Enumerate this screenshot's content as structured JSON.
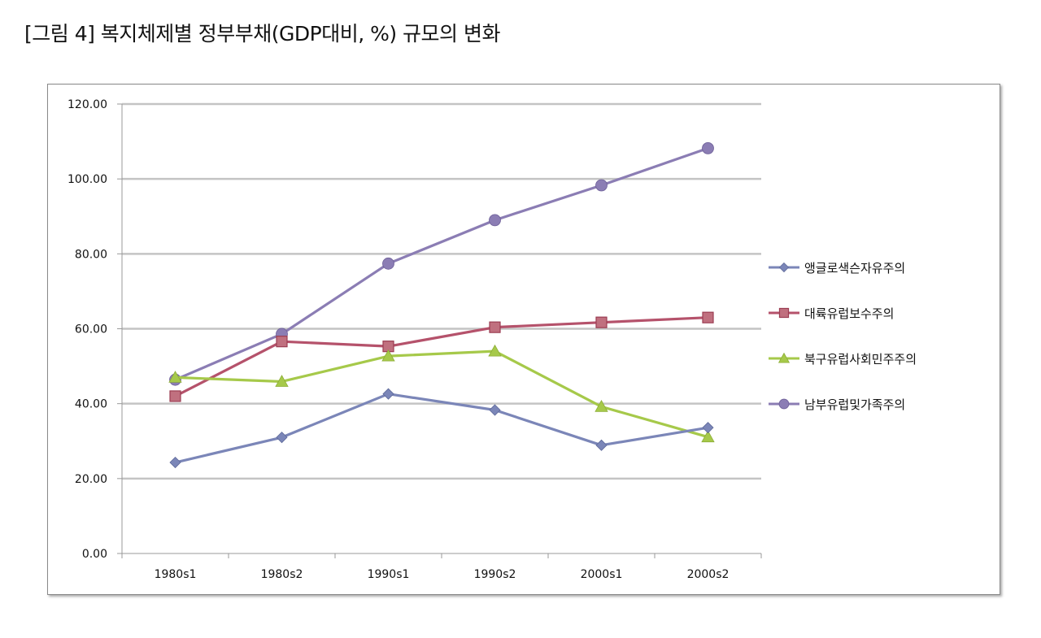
{
  "figure": {
    "title": "[그림 4] 복지체제별 정부부채(GDP대비, %) 규모의 변화"
  },
  "chart_data": {
    "type": "line",
    "title": "",
    "xlabel": "",
    "ylabel": "",
    "ylim": [
      0,
      120
    ],
    "yticks": [
      "0.00",
      "20.00",
      "40.00",
      "60.00",
      "80.00",
      "100.00",
      "120.00"
    ],
    "ytick_values": [
      0,
      20,
      40,
      60,
      80,
      100,
      120
    ],
    "categories": [
      "1980s1",
      "1980s2",
      "1990s1",
      "1990s2",
      "2000s1",
      "2000s2"
    ],
    "grid": true,
    "legend_position": "right",
    "series": [
      {
        "name": "앵글로색슨자유주의",
        "color": "#7b86b8",
        "marker": "diamond",
        "values": [
          24.3,
          31.0,
          42.6,
          38.3,
          28.9,
          33.6
        ]
      },
      {
        "name": "대륙유럽보수주의",
        "color": "#b5526b",
        "marker": "square",
        "values": [
          42.0,
          56.6,
          55.3,
          60.4,
          61.7,
          63.0
        ]
      },
      {
        "name": "북구유럽사회민주주의",
        "color": "#a6c94a",
        "marker": "triangle",
        "values": [
          47.0,
          45.9,
          52.7,
          54.0,
          39.2,
          31.1
        ]
      },
      {
        "name": "남부유럽및가족주의",
        "color": "#8b7db4",
        "marker": "circle",
        "values": [
          46.4,
          58.6,
          77.4,
          89.0,
          98.3,
          108.2
        ]
      }
    ]
  }
}
